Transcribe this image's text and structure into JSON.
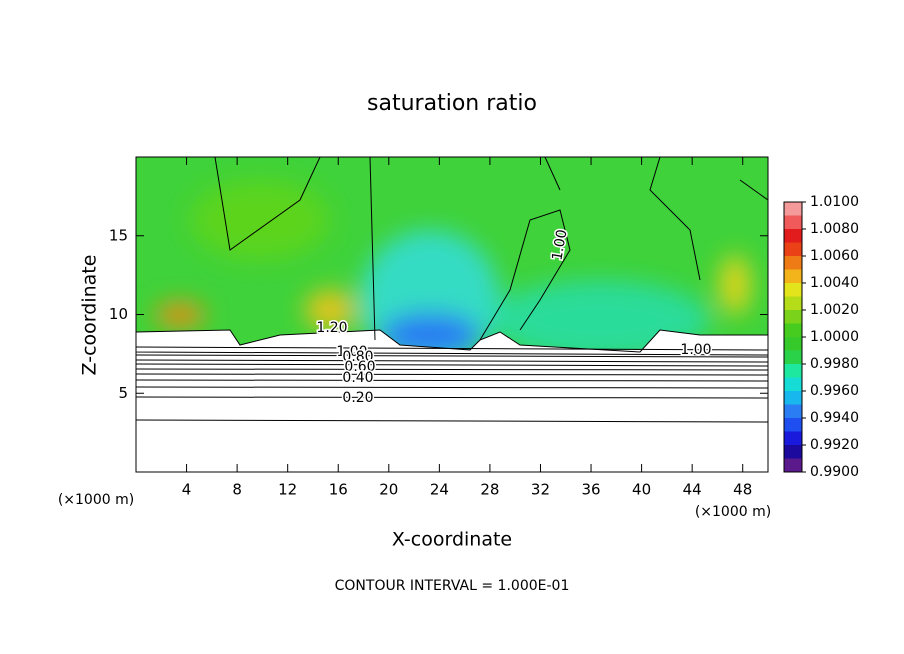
{
  "chart_data": {
    "type": "contour",
    "title": "saturation ratio",
    "x_label": "X-coordinate",
    "y_label": "Z-coordinate",
    "x_unit": "(×1000 m)",
    "footer": "CONTOUR INTERVAL = 1.000E-01",
    "xlim": [
      0,
      50
    ],
    "xticks": [
      4,
      8,
      12,
      16,
      20,
      24,
      28,
      32,
      36,
      40,
      44,
      48
    ],
    "ylim": [
      0,
      20
    ],
    "yticks": [
      5,
      10,
      15
    ],
    "contour_labels": [
      {
        "value": 1.2,
        "label": "1.20"
      },
      {
        "value": 1.0,
        "label": "1.00"
      },
      {
        "value": 0.8,
        "label": "0.80"
      },
      {
        "value": 0.6,
        "label": "0.60"
      },
      {
        "value": 0.4,
        "label": "0.40"
      },
      {
        "value": 0.2,
        "label": "0.20"
      },
      {
        "value": 1.0,
        "label": "1.00"
      },
      {
        "value": 1.0,
        "label": "1.00"
      }
    ],
    "colorbar": {
      "lim": [
        0.99,
        1.01
      ],
      "colors": [
        "#5b1a8c",
        "#1c0a9e",
        "#1a1adc",
        "#1f4ff0",
        "#2a7df2",
        "#18b7ee",
        "#16dcd6",
        "#1ee8a0",
        "#2ad24a",
        "#35c92a",
        "#45cc1e",
        "#7bd21a",
        "#b4dc18",
        "#e4e41c",
        "#f2b41a",
        "#ef7b17",
        "#ea4216",
        "#e21c1c",
        "#f05a5a",
        "#f59a9a"
      ],
      "ticks": [
        {
          "value": 0.99,
          "label": "0.9900"
        },
        {
          "value": 0.992,
          "label": "0.9920"
        },
        {
          "value": 0.994,
          "label": "0.9940"
        },
        {
          "value": 0.996,
          "label": "0.9960"
        },
        {
          "value": 0.998,
          "label": "0.9980"
        },
        {
          "value": 1.0,
          "label": "1.0000"
        },
        {
          "value": 1.002,
          "label": "1.0020"
        },
        {
          "value": 1.004,
          "label": "1.0040"
        },
        {
          "value": 1.006,
          "label": "1.0060"
        },
        {
          "value": 1.008,
          "label": "1.0080"
        },
        {
          "value": 1.01,
          "label": "1.0100"
        }
      ]
    }
  }
}
